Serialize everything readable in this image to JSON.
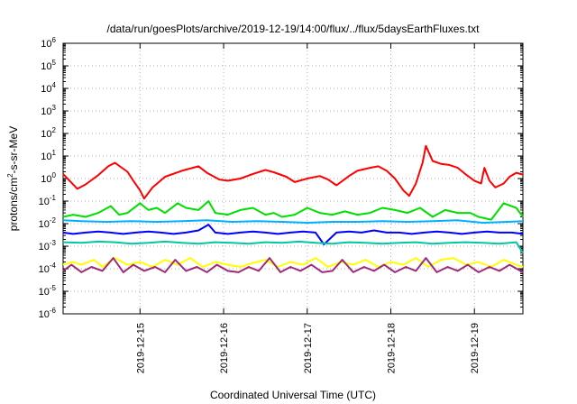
{
  "chart_data": {
    "type": "line",
    "title": "/data/run/goesPlots/archive/2019-12-19/14:00/flux/../flux/5daysEarthFluxes.txt",
    "xlabel": "Coordinated Universal Time (UTC)",
    "ylabel": {
      "base": "protons/cm",
      "sup": "2",
      "rest": "-s-sr-MeV"
    },
    "xlim": [
      14.08,
      19.58
    ],
    "ylim": [
      1e-06,
      1000000.0
    ],
    "y_scale": "log",
    "x_ticks": [
      {
        "value": 15,
        "label": "2019-12-15"
      },
      {
        "value": 16,
        "label": "2019-12-16"
      },
      {
        "value": 17,
        "label": "2019-12-17"
      },
      {
        "value": 18,
        "label": "2019-12-18"
      },
      {
        "value": 19,
        "label": "2019-12-19"
      }
    ],
    "y_ticks": [
      {
        "exp": -6,
        "label": "10",
        "sup": "-6"
      },
      {
        "exp": -5,
        "label": "10",
        "sup": "-5"
      },
      {
        "exp": -4,
        "label": "10",
        "sup": "-4"
      },
      {
        "exp": -3,
        "label": "10",
        "sup": "-3"
      },
      {
        "exp": -2,
        "label": "10",
        "sup": "-2"
      },
      {
        "exp": -1,
        "label": "10",
        "sup": "-1"
      },
      {
        "exp": 0,
        "label": "10",
        "sup": "0"
      },
      {
        "exp": 1,
        "label": "10",
        "sup": "1"
      },
      {
        "exp": 2,
        "label": "10",
        "sup": "2"
      },
      {
        "exp": 3,
        "label": "10",
        "sup": "3"
      },
      {
        "exp": 4,
        "label": "10",
        "sup": "4"
      },
      {
        "exp": 5,
        "label": "10",
        "sup": "5"
      },
      {
        "exp": 6,
        "label": "10",
        "sup": "6"
      }
    ],
    "grid": true,
    "series": [
      {
        "color": "#ff0000",
        "x": [
          14.08,
          14.25,
          14.35,
          14.5,
          14.62,
          14.7,
          14.85,
          14.92,
          15.0,
          15.05,
          15.15,
          15.3,
          15.5,
          15.7,
          15.8,
          15.95,
          16.05,
          16.2,
          16.35,
          16.5,
          16.6,
          16.75,
          16.85,
          17.0,
          17.15,
          17.25,
          17.35,
          17.5,
          17.6,
          17.75,
          17.85,
          17.95,
          18.05,
          18.15,
          18.22,
          18.3,
          18.38,
          18.42,
          18.5,
          18.6,
          18.7,
          18.8,
          18.9,
          19.0,
          19.08,
          19.12,
          19.18,
          19.25,
          19.35,
          19.42,
          19.5,
          19.58
        ],
        "values": [
          1.6,
          0.35,
          0.55,
          1.4,
          3.5,
          5.0,
          2.0,
          0.8,
          0.3,
          0.13,
          0.4,
          1.2,
          2.2,
          3.5,
          1.8,
          0.9,
          0.8,
          1.0,
          1.6,
          2.4,
          1.9,
          1.2,
          0.7,
          1.0,
          1.3,
          0.9,
          0.5,
          1.3,
          2.2,
          3.0,
          3.5,
          2.2,
          1.0,
          0.3,
          0.17,
          0.6,
          5.0,
          28,
          6.0,
          4.5,
          4.0,
          3.0,
          1.5,
          0.8,
          0.6,
          3.0,
          0.8,
          0.4,
          0.6,
          1.2,
          1.8,
          1.5
        ]
      },
      {
        "color": "#00e000",
        "x": [
          14.08,
          14.2,
          14.35,
          14.5,
          14.65,
          14.75,
          14.85,
          15.0,
          15.1,
          15.2,
          15.3,
          15.45,
          15.55,
          15.7,
          15.82,
          15.9,
          16.05,
          16.2,
          16.35,
          16.5,
          16.6,
          16.7,
          16.85,
          17.0,
          17.15,
          17.3,
          17.45,
          17.6,
          17.75,
          17.9,
          18.05,
          18.2,
          18.35,
          18.5,
          18.65,
          18.8,
          18.95,
          19.05,
          19.2,
          19.35,
          19.5,
          19.58
        ],
        "values": [
          0.02,
          0.025,
          0.02,
          0.03,
          0.06,
          0.025,
          0.03,
          0.08,
          0.04,
          0.05,
          0.03,
          0.08,
          0.05,
          0.04,
          0.1,
          0.03,
          0.025,
          0.04,
          0.05,
          0.025,
          0.03,
          0.02,
          0.025,
          0.05,
          0.03,
          0.025,
          0.035,
          0.025,
          0.03,
          0.05,
          0.04,
          0.03,
          0.05,
          0.02,
          0.04,
          0.03,
          0.03,
          0.02,
          0.015,
          0.08,
          0.05,
          0.02
        ]
      },
      {
        "color": "#00b0ff",
        "x": [
          14.08,
          14.3,
          14.6,
          14.9,
          15.2,
          15.5,
          15.8,
          16.1,
          16.4,
          16.7,
          17.0,
          17.3,
          17.6,
          17.9,
          18.2,
          18.5,
          18.8,
          19.1,
          19.4,
          19.58
        ],
        "values": [
          0.014,
          0.013,
          0.012,
          0.013,
          0.012,
          0.013,
          0.014,
          0.012,
          0.013,
          0.012,
          0.011,
          0.012,
          0.012,
          0.013,
          0.012,
          0.013,
          0.014,
          0.011,
          0.012,
          0.013
        ]
      },
      {
        "color": "#0000ff",
        "x": [
          14.08,
          14.2,
          14.35,
          14.5,
          14.65,
          14.8,
          14.95,
          15.1,
          15.25,
          15.4,
          15.55,
          15.7,
          15.82,
          15.9,
          16.05,
          16.2,
          16.35,
          16.5,
          16.65,
          16.8,
          16.95,
          17.1,
          17.2,
          17.35,
          17.5,
          17.65,
          17.8,
          17.95,
          18.1,
          18.25,
          18.4,
          18.55,
          18.7,
          18.85,
          19.0,
          19.15,
          19.3,
          19.45,
          19.58
        ],
        "values": [
          0.004,
          0.0035,
          0.004,
          0.0045,
          0.004,
          0.0035,
          0.004,
          0.0045,
          0.004,
          0.0035,
          0.004,
          0.005,
          0.009,
          0.004,
          0.0035,
          0.004,
          0.0045,
          0.004,
          0.0035,
          0.004,
          0.0045,
          0.004,
          0.0012,
          0.004,
          0.0045,
          0.004,
          0.005,
          0.004,
          0.004,
          0.0035,
          0.004,
          0.0045,
          0.004,
          0.0035,
          0.004,
          0.0045,
          0.004,
          0.004,
          0.0035
        ]
      },
      {
        "color": "#00c8a0",
        "x": [
          14.08,
          14.3,
          14.5,
          14.7,
          14.9,
          15.1,
          15.3,
          15.5,
          15.7,
          15.9,
          16.1,
          16.3,
          16.5,
          16.7,
          16.9,
          17.1,
          17.3,
          17.5,
          17.7,
          17.9,
          18.1,
          18.3,
          18.5,
          18.7,
          18.9,
          19.1,
          19.3,
          19.5,
          19.58
        ],
        "values": [
          0.0015,
          0.0014,
          0.0016,
          0.0015,
          0.0013,
          0.0014,
          0.0016,
          0.0014,
          0.0013,
          0.0015,
          0.0014,
          0.0013,
          0.0015,
          0.0014,
          0.0016,
          0.0014,
          0.0013,
          0.0015,
          0.0014,
          0.0013,
          0.0014,
          0.0015,
          0.0013,
          0.0014,
          0.0015,
          0.0014,
          0.0013,
          0.0015,
          0.0005
        ]
      },
      {
        "color": "#ffff00",
        "x": [
          14.08,
          14.2,
          14.3,
          14.45,
          14.55,
          14.7,
          14.85,
          15.0,
          15.15,
          15.3,
          15.45,
          15.6,
          15.75,
          15.9,
          16.05,
          16.2,
          16.35,
          16.5,
          16.65,
          16.8,
          16.95,
          17.1,
          17.25,
          17.4,
          17.55,
          17.7,
          17.85,
          18.0,
          18.15,
          18.3,
          18.45,
          18.6,
          18.75,
          18.9,
          19.05,
          19.2,
          19.35,
          19.5,
          19.58
        ],
        "values": [
          0.00015,
          0.0002,
          0.00015,
          0.00025,
          0.00012,
          0.0003,
          0.00015,
          0.0002,
          0.00012,
          0.00025,
          0.00015,
          0.0003,
          0.00012,
          0.0002,
          0.00015,
          0.00012,
          0.00018,
          0.00025,
          0.00012,
          0.0002,
          0.00015,
          0.0003,
          0.00012,
          0.0002,
          0.00015,
          0.00025,
          0.00012,
          0.0002,
          0.00015,
          0.0003,
          0.00012,
          0.00025,
          0.0003,
          0.00015,
          0.0002,
          0.00012,
          0.00025,
          0.00015,
          0.00012
        ]
      },
      {
        "color": "#a02a7a",
        "x": [
          14.08,
          14.18,
          14.3,
          14.42,
          14.55,
          14.68,
          14.8,
          14.92,
          15.05,
          15.18,
          15.3,
          15.42,
          15.55,
          15.68,
          15.8,
          15.92,
          16.05,
          16.18,
          16.3,
          16.42,
          16.55,
          16.68,
          16.8,
          16.92,
          17.05,
          17.18,
          17.3,
          17.42,
          17.55,
          17.68,
          17.8,
          17.92,
          18.05,
          18.18,
          18.3,
          18.42,
          18.55,
          18.68,
          18.8,
          18.92,
          19.05,
          19.18,
          19.3,
          19.42,
          19.58
        ],
        "values": [
          8e-05,
          0.00015,
          7e-05,
          0.00012,
          8e-05,
          0.0003,
          7e-05,
          0.00015,
          8e-05,
          0.00012,
          7e-05,
          0.00025,
          8e-05,
          0.00012,
          7e-05,
          0.00015,
          8e-05,
          7e-05,
          0.00012,
          8e-05,
          0.0003,
          7e-05,
          0.00012,
          8e-05,
          0.00015,
          7e-05,
          8e-05,
          0.00025,
          7e-05,
          0.00012,
          8e-05,
          0.00015,
          7e-05,
          0.00012,
          8e-05,
          0.0003,
          7e-05,
          0.00012,
          8e-05,
          0.00015,
          7e-05,
          0.00012,
          8e-05,
          0.00015,
          7e-05
        ]
      }
    ]
  }
}
